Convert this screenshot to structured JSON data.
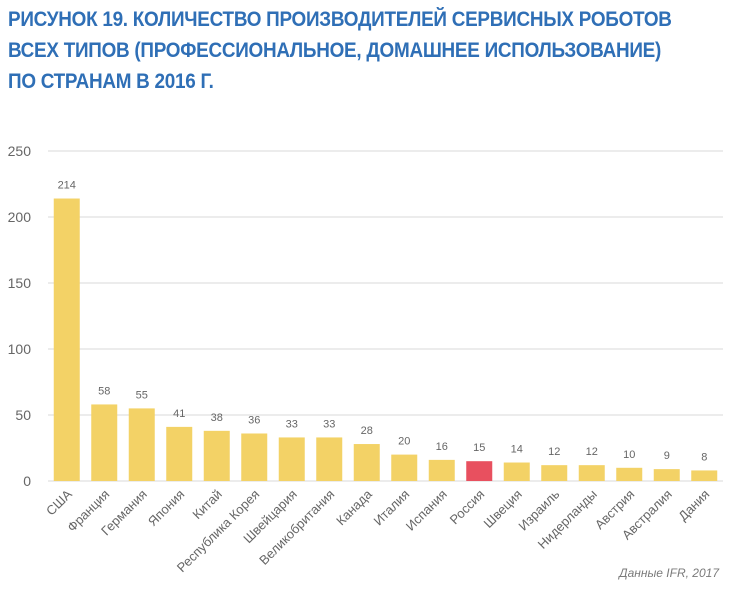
{
  "title_lines": [
    "РИСУНОК 19. КОЛИЧЕСТВО ПРОИЗВОДИТЕЛЕЙ СЕРВИСНЫХ РОБОТОВ",
    "ВСЕХ ТИПОВ (ПРОФЕССИОНАЛЬНОЕ, ДОМАШНЕЕ ИСПОЛЬЗОВАНИЕ)",
    "ПО СТРАНАМ В 2016 Г."
  ],
  "source": "Данные IFR, 2017",
  "colors": {
    "bar": "#f3d266",
    "highlight": "#e8505f",
    "title": "#2f6fb6",
    "grid": "#d9d9d9",
    "text": "#666666"
  },
  "chart_data": {
    "type": "bar",
    "categories": [
      "США",
      "Франция",
      "Германия",
      "Япония",
      "Китай",
      "Республика Корея",
      "Швейцария",
      "Великобритания",
      "Канада",
      "Италия",
      "Испания",
      "Россия",
      "Швеция",
      "Израиль",
      "Нидерланды",
      "Австрия",
      "Австралия",
      "Дания"
    ],
    "values": [
      214,
      58,
      55,
      41,
      38,
      36,
      33,
      33,
      28,
      20,
      16,
      15,
      14,
      12,
      12,
      10,
      9,
      8
    ],
    "highlight_category": "Россия",
    "yticks": [
      0,
      50,
      100,
      150,
      200,
      250
    ],
    "ylim": [
      0,
      250
    ],
    "grid": true
  }
}
